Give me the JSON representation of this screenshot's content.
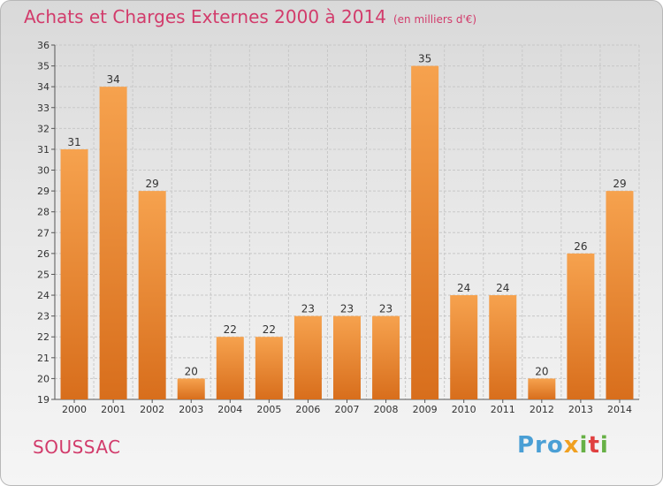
{
  "header": {
    "title": "Achats et Charges Externes 2000 à 2014",
    "unit": "(en milliers d'€)"
  },
  "footer": {
    "commune": "SOUSSAC",
    "brand_parts": [
      "Pro",
      "x",
      "i",
      "t",
      "i"
    ]
  },
  "colors": {
    "title": "#d23b6b",
    "bar_light": "#f6a24e",
    "bar_dark": "#d86e1c"
  },
  "chart_data": {
    "type": "bar",
    "title": "Achats et Charges Externes 2000 à 2014",
    "subtitle": "(en milliers d'€)",
    "categories": [
      "2000",
      "2001",
      "2002",
      "2003",
      "2004",
      "2005",
      "2006",
      "2007",
      "2008",
      "2009",
      "2010",
      "2011",
      "2012",
      "2013",
      "2014"
    ],
    "values": [
      31,
      34,
      29,
      20,
      22,
      22,
      23,
      23,
      23,
      35,
      24,
      24,
      20,
      26,
      29
    ],
    "ylim": [
      19,
      36
    ],
    "yticks": [
      19,
      20,
      21,
      22,
      23,
      24,
      25,
      26,
      27,
      28,
      29,
      30,
      31,
      32,
      33,
      34,
      35,
      36
    ],
    "grid": true,
    "data_labels": true
  }
}
